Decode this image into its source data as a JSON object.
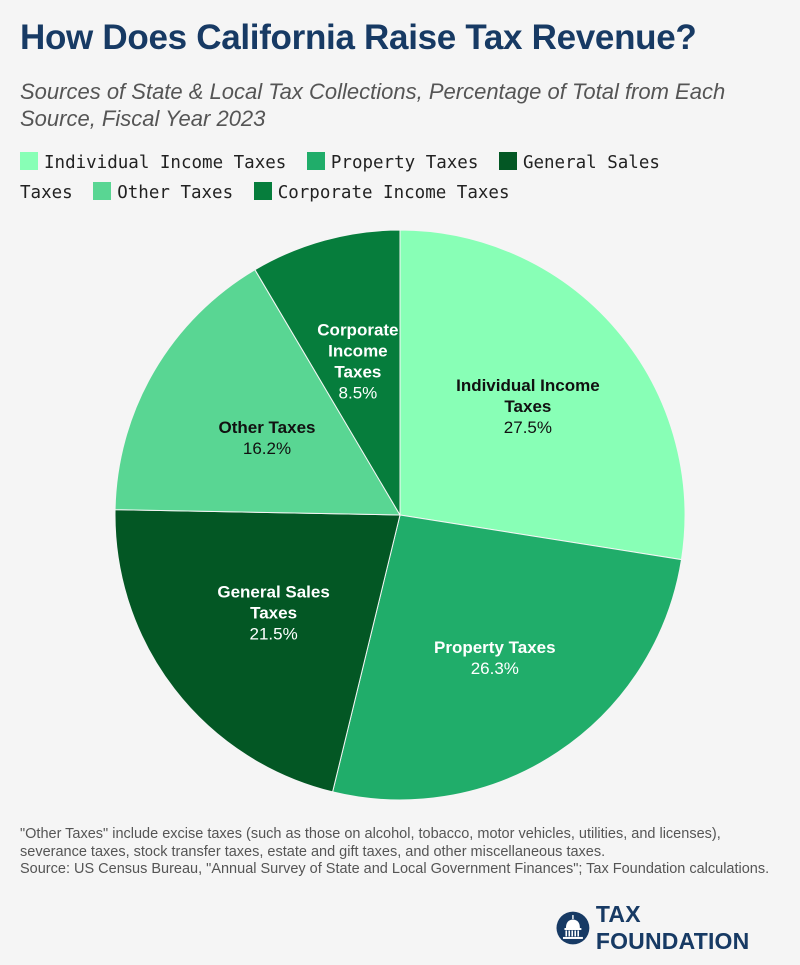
{
  "title": "How Does California Raise Tax Revenue?",
  "subtitle": "Sources of State & Local Tax Collections, Percentage of Total from Each Source, Fiscal Year 2023",
  "legend": [
    {
      "label": "Individual Income Taxes",
      "color": "#88ffb6"
    },
    {
      "label": "Property Taxes",
      "color": "#20ad6a"
    },
    {
      "label": "General Sales Taxes",
      "color": "#035724"
    },
    {
      "label": "Other Taxes",
      "color": "#59d693"
    },
    {
      "label": "Corporate Income Taxes",
      "color": "#067d3c"
    }
  ],
  "chart_data": {
    "type": "pie",
    "title": "How Does California Raise Tax Revenue?",
    "categories": [
      "Individual Income Taxes",
      "Property Taxes",
      "General Sales Taxes",
      "Other Taxes",
      "Corporate Income Taxes"
    ],
    "values": [
      27.5,
      26.3,
      21.5,
      16.2,
      8.5
    ],
    "value_labels": [
      "27.5%",
      "26.3%",
      "21.5%",
      "16.2%",
      "8.5%"
    ],
    "label_lines": [
      [
        "Individual Income",
        "Taxes"
      ],
      [
        "Property Taxes"
      ],
      [
        "General Sales",
        "Taxes"
      ],
      [
        "Other Taxes"
      ],
      [
        "Corporate",
        "Income",
        "Taxes"
      ]
    ],
    "colors": [
      "#88ffb6",
      "#20ad6a",
      "#035724",
      "#59d693",
      "#067d3c"
    ],
    "label_colors": [
      "#111111",
      "#ffffff",
      "#ffffff",
      "#111111",
      "#ffffff"
    ],
    "start_angle": "12 o'clock, clockwise",
    "legend_position": "top"
  },
  "notes": [
    "\"Other Taxes\" include excise taxes (such as those on alcohol, tobacco, motor vehicles, utilities, and licenses), severance taxes, stock transfer taxes, estate and gift taxes, and other miscellaneous taxes.",
    "Source: US Census Bureau, \"Annual Survey of State and Local Government Finances\"; Tax Foundation calculations."
  ],
  "logo": {
    "text": "TAX FOUNDATION",
    "icon": "capitol-dome-icon"
  }
}
